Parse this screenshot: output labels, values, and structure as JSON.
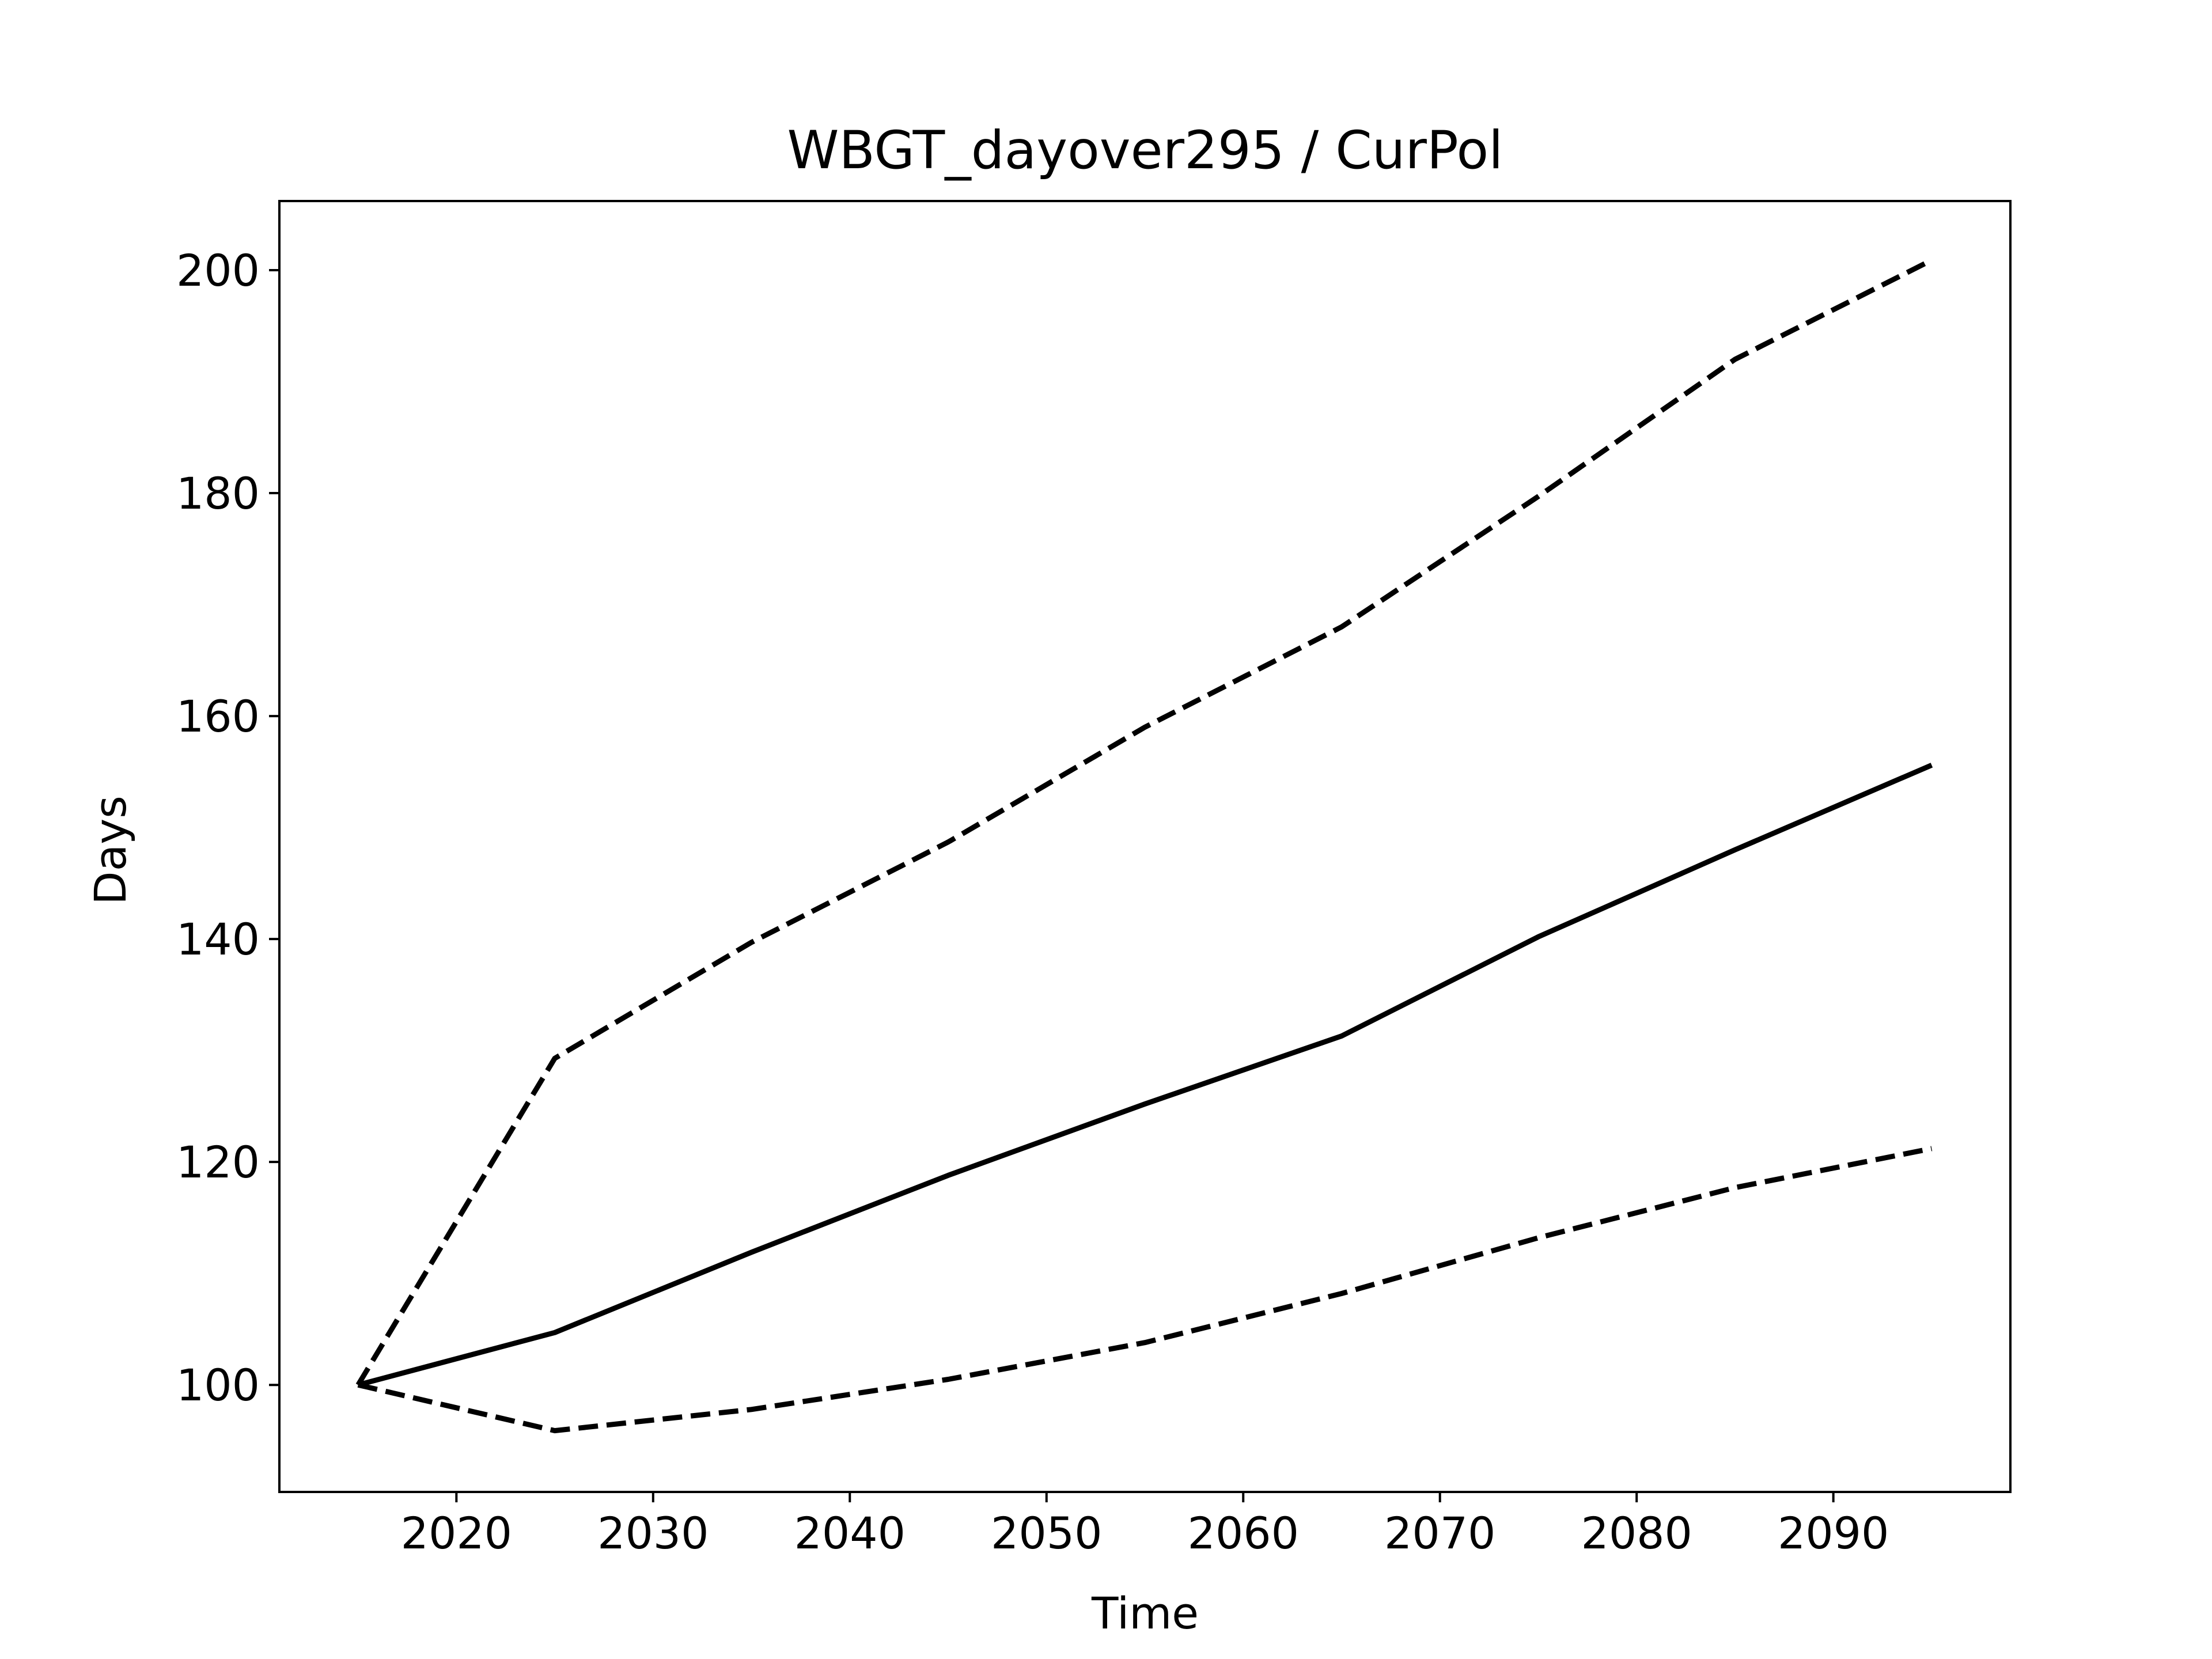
{
  "chart_data": {
    "type": "line",
    "title": "WBGT_dayover295 / CurPol",
    "xlabel": "Time",
    "ylabel": "Days",
    "xlim": [
      2011,
      2099
    ],
    "ylim": [
      90.4,
      206.2
    ],
    "xticks": [
      2020,
      2030,
      2040,
      2050,
      2060,
      2070,
      2080,
      2090
    ],
    "yticks": [
      100,
      120,
      140,
      160,
      180,
      200
    ],
    "grid": false,
    "legend": "none",
    "x": [
      2015,
      2025,
      2035,
      2045,
      2055,
      2065,
      2075,
      2085,
      2095
    ],
    "series": [
      {
        "style": "solid",
        "color": "#000000",
        "values": [
          100,
          104.7,
          111.9,
          118.8,
          125.2,
          131.3,
          140.2,
          148.0,
          155.6
        ]
      },
      {
        "style": "dashed",
        "color": "#000000",
        "values": [
          100,
          129.3,
          139.7,
          148.7,
          159.0,
          168.0,
          179.7,
          192.0,
          200.9
        ]
      },
      {
        "style": "dashed",
        "color": "#000000",
        "values": [
          100,
          95.9,
          97.8,
          100.5,
          103.8,
          108.2,
          113.2,
          117.7,
          121.2
        ]
      }
    ]
  }
}
